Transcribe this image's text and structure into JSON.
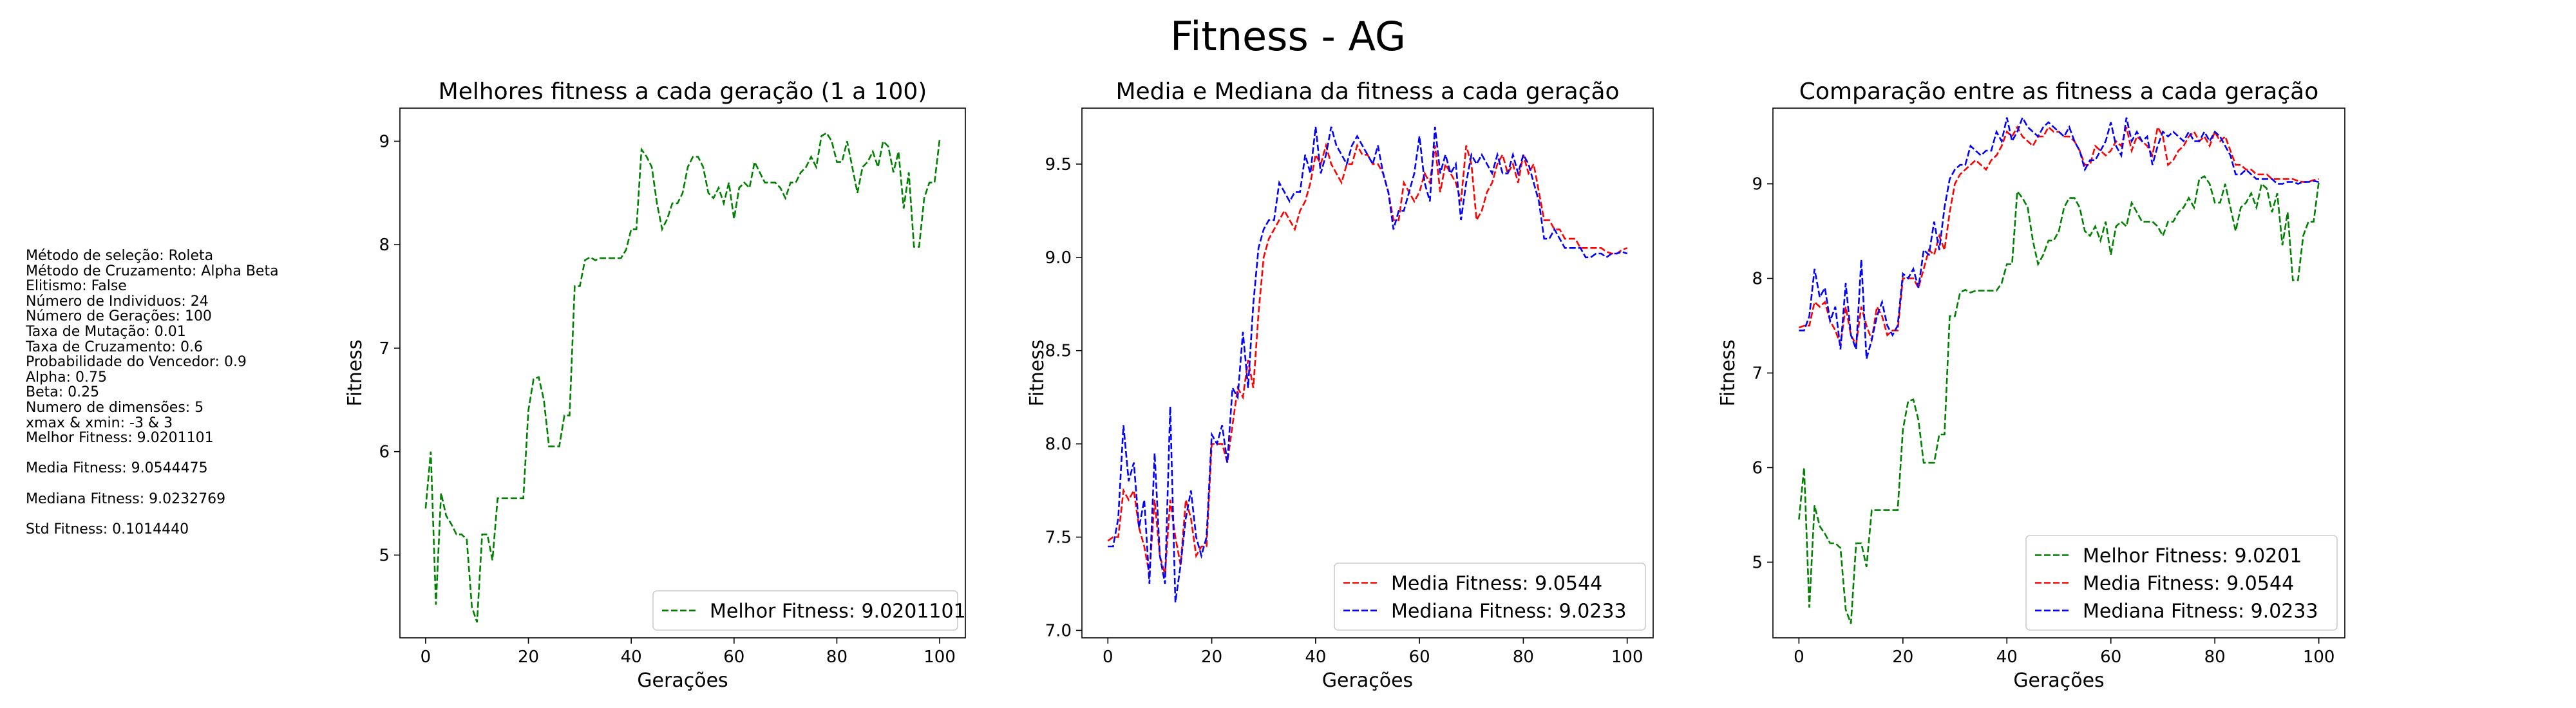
{
  "title": "Fitness - AG",
  "info": [
    "Método de seleção: Roleta",
    "Método de Cruzamento: Alpha Beta",
    "Elitismo: False",
    "Número de Individuos: 24",
    "Número de Gerações: 100",
    "Taxa de Mutação: 0.01",
    "Taxa de Cruzamento: 0.6",
    "Probabilidade do Vencedor: 0.9",
    "Alpha: 0.75",
    "Beta: 0.25",
    "Numero de dimensões: 5",
    "xmax & xmin: -3 & 3",
    "Melhor Fitness: 9.0201101",
    "",
    "Media Fitness: 9.0544475",
    "",
    "Mediana Fitness: 9.0232769",
    "",
    "Std Fitness: 0.1014440"
  ],
  "colors": {
    "best": "#008000",
    "mean": "#ff0000",
    "median": "#0000ff"
  },
  "chart_data": [
    {
      "type": "line",
      "title": "Melhores fitness a cada geração (1 a 100)",
      "xlabel": "Gerações",
      "ylabel": "Fitness",
      "xlim": [
        -5,
        105
      ],
      "ylim": [
        4.2,
        9.32
      ],
      "xticks": [
        0,
        20,
        40,
        60,
        80,
        100
      ],
      "yticks": [
        5,
        6,
        7,
        8,
        9
      ],
      "legend_position": "lower-right",
      "series": [
        {
          "name": "Melhor Fitness: 9.0201101",
          "color": "#008000",
          "values": [
            5.45,
            6.0,
            4.52,
            5.6,
            5.38,
            5.3,
            5.2,
            5.2,
            5.15,
            4.5,
            4.35,
            5.2,
            5.2,
            4.95,
            5.55,
            5.55,
            5.55,
            5.55,
            5.55,
            5.55,
            6.4,
            6.7,
            6.72,
            6.5,
            6.05,
            6.05,
            6.05,
            6.35,
            6.35,
            7.6,
            7.6,
            7.85,
            7.88,
            7.85,
            7.87,
            7.87,
            7.87,
            7.87,
            7.87,
            7.95,
            8.15,
            8.15,
            8.92,
            8.85,
            8.75,
            8.4,
            8.15,
            8.25,
            8.4,
            8.4,
            8.5,
            8.75,
            8.85,
            8.85,
            8.75,
            8.5,
            8.45,
            8.55,
            8.4,
            8.6,
            8.25,
            8.55,
            8.6,
            8.55,
            8.8,
            8.7,
            8.6,
            8.6,
            8.6,
            8.55,
            8.45,
            8.6,
            8.6,
            8.7,
            8.75,
            8.85,
            8.75,
            9.05,
            9.08,
            9.0,
            8.8,
            8.8,
            9.0,
            8.75,
            8.5,
            8.75,
            8.8,
            8.9,
            8.75,
            9.0,
            8.95,
            8.7,
            8.9,
            8.35,
            8.7,
            7.98,
            7.98,
            8.45,
            8.6,
            8.6,
            9.02
          ]
        }
      ]
    },
    {
      "type": "line",
      "title": "Media e Mediana da fitness a cada geração",
      "xlabel": "Gerações",
      "ylabel": "Fitness",
      "xlim": [
        -5,
        105
      ],
      "ylim": [
        6.96,
        9.8
      ],
      "xticks": [
        0,
        20,
        40,
        60,
        80,
        100
      ],
      "yticks": [
        7.0,
        7.5,
        8.0,
        8.5,
        9.0,
        9.5
      ],
      "ytick_labels": [
        "7.0",
        "7.5",
        "8.0",
        "8.5",
        "9.0",
        "9.5"
      ],
      "legend_position": "lower-right",
      "series": [
        {
          "name": "Media Fitness: 9.0544",
          "color": "#ff0000",
          "values": [
            7.48,
            7.5,
            7.5,
            7.75,
            7.7,
            7.75,
            7.55,
            7.45,
            7.3,
            7.7,
            7.4,
            7.3,
            7.7,
            7.5,
            7.35,
            7.7,
            7.6,
            7.4,
            7.45,
            7.45,
            8.0,
            8.0,
            8.0,
            7.9,
            8.1,
            8.3,
            8.25,
            8.45,
            8.3,
            8.7,
            9.0,
            9.1,
            9.15,
            9.2,
            9.25,
            9.2,
            9.15,
            9.25,
            9.3,
            9.4,
            9.55,
            9.5,
            9.6,
            9.5,
            9.45,
            9.4,
            9.5,
            9.5,
            9.6,
            9.55,
            9.55,
            9.5,
            9.5,
            9.45,
            9.35,
            9.2,
            9.2,
            9.4,
            9.35,
            9.3,
            9.35,
            9.45,
            9.4,
            9.6,
            9.35,
            9.5,
            9.45,
            9.4,
            9.3,
            9.6,
            9.5,
            9.2,
            9.25,
            9.35,
            9.4,
            9.5,
            9.55,
            9.45,
            9.5,
            9.4,
            9.55,
            9.45,
            9.5,
            9.35,
            9.2,
            9.2,
            9.15,
            9.15,
            9.1,
            9.1,
            9.1,
            9.05,
            9.05,
            9.05,
            9.05,
            9.05,
            9.03,
            9.02,
            9.02,
            9.04,
            9.05
          ]
        },
        {
          "name": "Mediana Fitness: 9.0233",
          "color": "#0000ff",
          "values": [
            7.45,
            7.45,
            7.6,
            8.1,
            7.8,
            7.9,
            7.55,
            7.7,
            7.25,
            7.95,
            7.4,
            7.25,
            8.2,
            7.15,
            7.35,
            7.6,
            7.75,
            7.5,
            7.4,
            7.5,
            8.05,
            8.0,
            8.1,
            7.9,
            8.3,
            8.25,
            8.6,
            8.3,
            8.75,
            9.05,
            9.15,
            9.2,
            9.2,
            9.4,
            9.35,
            9.3,
            9.35,
            9.35,
            9.55,
            9.45,
            9.7,
            9.45,
            9.55,
            9.7,
            9.6,
            9.55,
            9.5,
            9.6,
            9.65,
            9.6,
            9.55,
            9.5,
            9.6,
            9.45,
            9.35,
            9.15,
            9.25,
            9.25,
            9.35,
            9.45,
            9.65,
            9.4,
            9.3,
            9.7,
            9.45,
            9.55,
            9.45,
            9.5,
            9.2,
            9.4,
            9.55,
            9.5,
            9.55,
            9.5,
            9.45,
            9.55,
            9.45,
            9.45,
            9.55,
            9.45,
            9.55,
            9.5,
            9.4,
            9.3,
            9.1,
            9.1,
            9.15,
            9.1,
            9.05,
            9.05,
            9.05,
            9.05,
            9.0,
            9.0,
            9.02,
            9.02,
            9.0,
            9.02,
            9.02,
            9.03,
            9.02
          ]
        }
      ]
    },
    {
      "type": "line",
      "title": "Comparação entre as fitness a cada geração",
      "xlabel": "Gerações",
      "ylabel": "Fitness",
      "xlim": [
        -5,
        105
      ],
      "ylim": [
        4.2,
        9.8
      ],
      "xticks": [
        0,
        20,
        40,
        60,
        80,
        100
      ],
      "yticks": [
        5,
        6,
        7,
        8,
        9
      ],
      "legend_position": "lower-right",
      "series": [
        {
          "name": "Melhor Fitness: 9.0201",
          "color": "#008000",
          "ref": "0.0"
        },
        {
          "name": "Media Fitness: 9.0544",
          "color": "#ff0000",
          "ref": "1.0"
        },
        {
          "name": "Mediana Fitness: 9.0233",
          "color": "#0000ff",
          "ref": "1.1"
        }
      ]
    }
  ]
}
